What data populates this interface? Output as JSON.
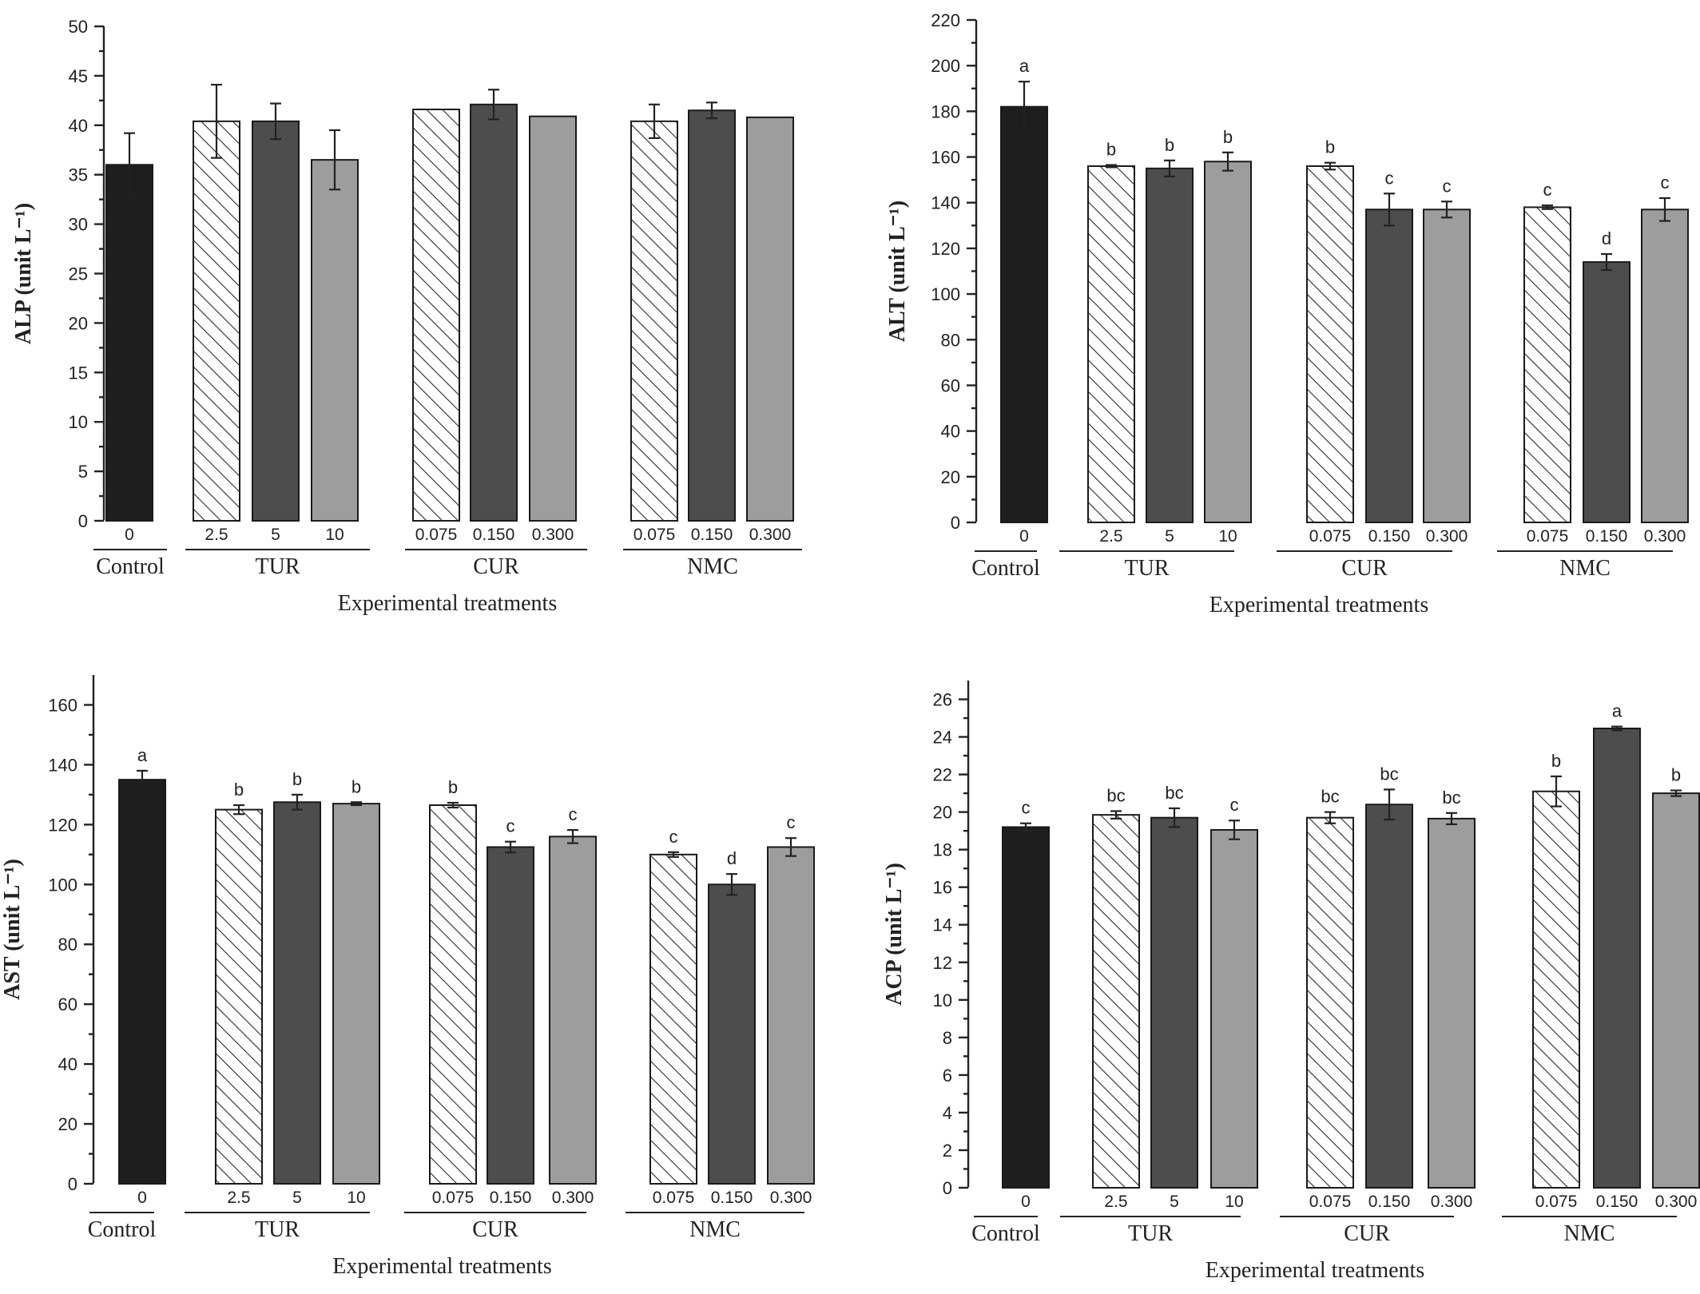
{
  "chart_data": [
    {
      "type": "bar",
      "panel": "top-left",
      "ylabel": "ALP (unit L⁻¹)",
      "xlabel": "Experimental treatments",
      "ylim": [
        0,
        50
      ],
      "yticks": [
        0,
        5,
        10,
        15,
        20,
        25,
        30,
        35,
        40,
        45,
        50
      ],
      "groups": [
        {
          "name": "Control",
          "categories": [
            "0"
          ]
        },
        {
          "name": "TUR",
          "categories": [
            "2.5",
            "5",
            "10"
          ]
        },
        {
          "name": "CUR",
          "categories": [
            "0.075",
            "0.150",
            "0.300"
          ]
        },
        {
          "name": "NMC",
          "categories": [
            "0.075",
            "0.150",
            "0.300"
          ]
        }
      ],
      "values": [
        36.0,
        40.4,
        40.4,
        36.5,
        41.6,
        42.1,
        40.9,
        40.4,
        41.5,
        40.8
      ],
      "errors": [
        3.2,
        3.7,
        1.8,
        3.0,
        0.0,
        1.5,
        0.0,
        1.7,
        0.8,
        0.0
      ],
      "significance": [
        "",
        "",
        "",
        "",
        "",
        "",
        "",
        "",
        "",
        ""
      ]
    },
    {
      "type": "bar",
      "panel": "top-right",
      "ylabel": "ALT (unit L⁻¹)",
      "xlabel": "Experimental treatments",
      "ylim": [
        0,
        220
      ],
      "yticks": [
        0,
        20,
        40,
        60,
        80,
        100,
        120,
        140,
        160,
        180,
        200,
        220
      ],
      "groups": [
        {
          "name": "Control",
          "categories": [
            "0"
          ]
        },
        {
          "name": "TUR",
          "categories": [
            "2.5",
            "5",
            "10"
          ]
        },
        {
          "name": "CUR",
          "categories": [
            "0.075",
            "0.150",
            "0.300"
          ]
        },
        {
          "name": "NMC",
          "categories": [
            "0.075",
            "0.150",
            "0.300"
          ]
        }
      ],
      "values": [
        182,
        156,
        155,
        158,
        156,
        137,
        137,
        138,
        114,
        137
      ],
      "errors": [
        11,
        0.5,
        3.5,
        4.0,
        1.5,
        7.0,
        3.5,
        0.8,
        3.5,
        5.0
      ],
      "significance": [
        "a",
        "b",
        "b",
        "b",
        "b",
        "c",
        "c",
        "c",
        "d",
        "c"
      ]
    },
    {
      "type": "bar",
      "panel": "bottom-left",
      "ylabel": "AST (unit L⁻¹)",
      "xlabel": "Experimental treatments",
      "ylim": [
        0,
        170
      ],
      "yticks": [
        0,
        20,
        40,
        60,
        80,
        100,
        120,
        140,
        160
      ],
      "groups": [
        {
          "name": "Control",
          "categories": [
            "0"
          ]
        },
        {
          "name": "TUR",
          "categories": [
            "2.5",
            "5",
            "10"
          ]
        },
        {
          "name": "CUR",
          "categories": [
            "0.075",
            "0.150",
            "0.300"
          ]
        },
        {
          "name": "NMC",
          "categories": [
            "0.075",
            "0.150",
            "0.300"
          ]
        }
      ],
      "values": [
        135,
        125,
        127.5,
        127,
        126.5,
        112.5,
        116,
        110,
        100,
        112.5
      ],
      "errors": [
        3.0,
        1.5,
        2.5,
        0.5,
        0.8,
        1.8,
        2.2,
        0.8,
        3.5,
        3.0
      ],
      "significance": [
        "a",
        "b",
        "b",
        "b",
        "b",
        "c",
        "c",
        "c",
        "d",
        "c"
      ]
    },
    {
      "type": "bar",
      "panel": "bottom-right",
      "ylabel": "ACP (unit L⁻¹)",
      "xlabel": "Experimental treatments",
      "ylim": [
        0,
        27
      ],
      "yticks": [
        0,
        2,
        4,
        6,
        8,
        10,
        12,
        14,
        16,
        18,
        20,
        22,
        24,
        26
      ],
      "groups": [
        {
          "name": "Control",
          "categories": [
            "0"
          ]
        },
        {
          "name": "TUR",
          "categories": [
            "2.5",
            "5",
            "10"
          ]
        },
        {
          "name": "CUR",
          "categories": [
            "0.075",
            "0.150",
            "0.300"
          ]
        },
        {
          "name": "NMC",
          "categories": [
            "0.075",
            "0.150",
            "0.300"
          ]
        }
      ],
      "values": [
        19.2,
        19.85,
        19.7,
        19.05,
        19.7,
        20.4,
        19.65,
        21.1,
        24.45,
        21.0
      ],
      "errors": [
        0.2,
        0.2,
        0.5,
        0.5,
        0.3,
        0.8,
        0.3,
        0.8,
        0.1,
        0.15
      ],
      "significance": [
        "c",
        "bc",
        "bc",
        "c",
        "bc",
        "bc",
        "bc",
        "b",
        "a",
        "b"
      ]
    }
  ],
  "colors": {
    "control": "#1e1e1e",
    "hatch_background": "#ffffff",
    "hatch_line": "#2a2a2a",
    "dark_bar": "#4d4d4d",
    "light_bar": "#9d9d9d",
    "axis": "#222222"
  }
}
